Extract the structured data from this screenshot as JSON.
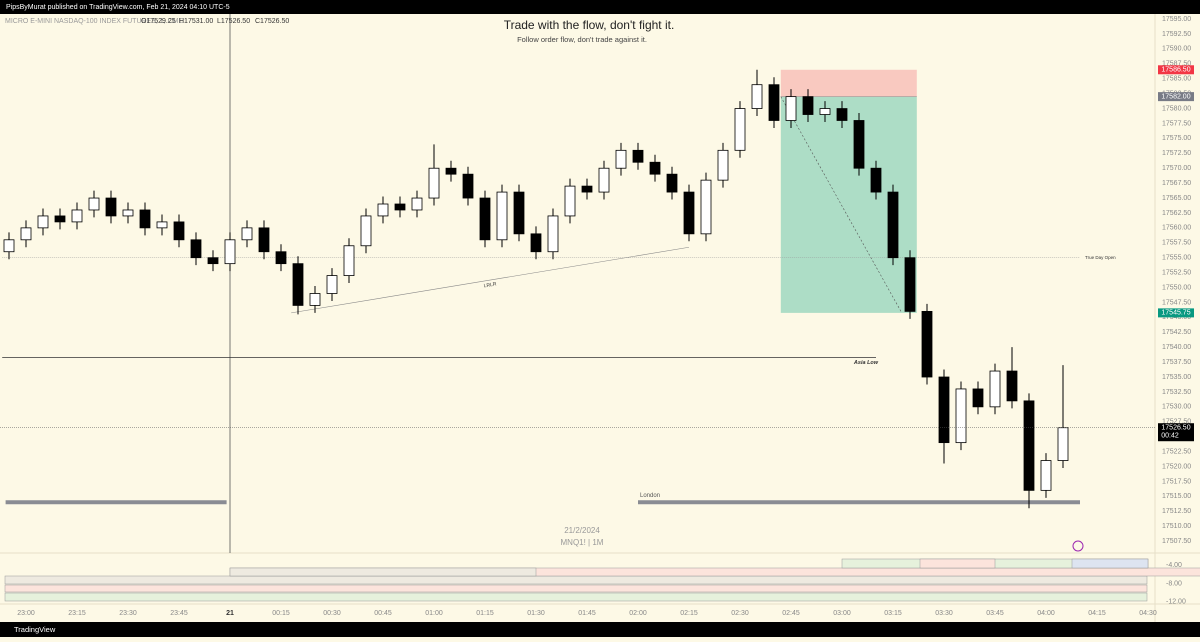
{
  "header": {
    "publisher": "PipsByMurat published on TradingView.com, Feb 21, 2024 04:10 UTC-5"
  },
  "chart_data": {
    "type": "candlestick",
    "title": "Trade with the flow, don't fight it.",
    "subtitle": "Follow order flow, don't trade against it.",
    "symbol": "MICRO E-MINI NASDAQ-100 INDEX FUTURES, 1, CME",
    "ohlc_legend": [
      "O17529.25",
      "H17531.00",
      "L17526.50",
      "C17526.50"
    ],
    "watermark": [
      "21/2/2024",
      "MNQ1! | 1M"
    ],
    "x": [
      "22:55",
      "23:00",
      "23:05",
      "23:10",
      "23:15",
      "23:20",
      "23:25",
      "23:30",
      "23:35",
      "23:40",
      "23:45",
      "23:50",
      "23:55",
      "00:00",
      "00:05",
      "00:10",
      "00:15",
      "00:20",
      "00:25",
      "00:30",
      "00:35",
      "00:40",
      "00:45",
      "00:50",
      "00:55",
      "01:00",
      "01:05",
      "01:10",
      "01:15",
      "01:20",
      "01:25",
      "01:30",
      "01:35",
      "01:40",
      "01:45",
      "01:50",
      "01:55",
      "02:00",
      "02:05",
      "02:10",
      "02:15",
      "02:20",
      "02:25",
      "02:30",
      "02:35",
      "02:40",
      "02:45",
      "02:50",
      "02:55",
      "03:00",
      "03:05",
      "03:10",
      "03:15",
      "03:20",
      "03:25",
      "03:30",
      "03:35",
      "03:40",
      "03:45",
      "03:50",
      "03:55",
      "04:00",
      "04:05"
    ],
    "open": [
      17556,
      17558,
      17560,
      17562,
      17561,
      17563,
      17565,
      17562,
      17563,
      17560,
      17561,
      17558,
      17555,
      17554,
      17558,
      17560,
      17556,
      17554,
      17547,
      17549,
      17552,
      17557,
      17562,
      17564,
      17563,
      17565,
      17570,
      17569,
      17565,
      17558,
      17566,
      17559,
      17556,
      17562,
      17567,
      17566,
      17570,
      17573,
      17571,
      17569,
      17566,
      17559,
      17568,
      17573,
      17580,
      17584,
      17578,
      17582,
      17579,
      17580,
      17578,
      17570,
      17566,
      17555,
      17546,
      17535,
      17524,
      17533,
      17530,
      17536,
      17531,
      17516,
      17521
    ],
    "high": [
      17559.25,
      17561.25,
      17563.25,
      17563.25,
      17564.25,
      17566.25,
      17566.25,
      17564.25,
      17564.25,
      17562.25,
      17562.25,
      17559.25,
      17556.25,
      17559.25,
      17561.25,
      17561.25,
      17557.25,
      17555.25,
      17550.25,
      17553.25,
      17558.25,
      17563.25,
      17565.25,
      17565.25,
      17566.25,
      17574,
      17571.25,
      17570.25,
      17566.25,
      17567.25,
      17567.25,
      17560.25,
      17563.25,
      17568.25,
      17568.25,
      17571.25,
      17574.25,
      17574.25,
      17572.25,
      17570.25,
      17567.25,
      17569.25,
      17574.25,
      17581.25,
      17586.5,
      17585.25,
      17583.25,
      17583.25,
      17581.25,
      17581.25,
      17579.25,
      17571.25,
      17567.25,
      17556.25,
      17547.25,
      17536.25,
      17534.25,
      17534.25,
      17537.25,
      17540,
      17532.25,
      17522.25,
      17537
    ],
    "low": [
      17554.75,
      17556.75,
      17558.75,
      17559.75,
      17559.75,
      17561.75,
      17560.75,
      17560.75,
      17558.75,
      17558.75,
      17556.75,
      17553.75,
      17552.75,
      17552.75,
      17556.75,
      17554.75,
      17552.75,
      17545.5,
      17545.75,
      17547.75,
      17550.75,
      17555.75,
      17560.75,
      17561.75,
      17561.75,
      17563.75,
      17567.75,
      17563.75,
      17556.75,
      17556.75,
      17557.75,
      17554.75,
      17554.75,
      17560.75,
      17564.75,
      17564.75,
      17568.75,
      17569.75,
      17567.75,
      17564.75,
      17557.75,
      17557.75,
      17566.75,
      17571.75,
      17578.75,
      17576.75,
      17576.75,
      17577.75,
      17577.75,
      17576.75,
      17568.75,
      17564.75,
      17553.75,
      17544.75,
      17533.75,
      17520.5,
      17522.75,
      17528.75,
      17528.75,
      17529.75,
      17513,
      17514.75,
      17519.75
    ],
    "close": [
      17558,
      17560,
      17562,
      17561,
      17563,
      17565,
      17562,
      17563,
      17560,
      17561,
      17558,
      17555,
      17554,
      17558,
      17560,
      17556,
      17554,
      17547,
      17549,
      17552,
      17557,
      17562,
      17564,
      17563,
      17565,
      17570,
      17569,
      17565,
      17558,
      17566,
      17559,
      17556,
      17562,
      17567,
      17566,
      17570,
      17573,
      17571,
      17569,
      17566,
      17559,
      17568,
      17573,
      17580,
      17584,
      17578,
      17582,
      17579,
      17580,
      17578,
      17570,
      17566,
      17555,
      17546,
      17535,
      17524,
      17533,
      17530,
      17536,
      17531,
      17516,
      17521,
      17526.5
    ],
    "up_color": "#ffffff",
    "down_color": "#000000",
    "ylim": [
      17505.5,
      17595.85
    ],
    "yticks": [
      {
        "value": 17595,
        "label": "17595.00"
      },
      {
        "value": 17592.5,
        "label": "17592.50"
      },
      {
        "value": 17590,
        "label": "17590.00"
      },
      {
        "value": 17587.5,
        "label": "17587.50"
      },
      {
        "value": 17585,
        "label": "17585.00"
      },
      {
        "value": 17582.5,
        "label": "17582.50"
      },
      {
        "value": 17580,
        "label": "17580.00"
      },
      {
        "value": 17577.5,
        "label": "17577.50"
      },
      {
        "value": 17575,
        "label": "17575.00"
      },
      {
        "value": 17572.5,
        "label": "17572.50"
      },
      {
        "value": 17570,
        "label": "17570.00"
      },
      {
        "value": 17567.5,
        "label": "17567.50"
      },
      {
        "value": 17565,
        "label": "17565.00"
      },
      {
        "value": 17562.5,
        "label": "17562.50"
      },
      {
        "value": 17560,
        "label": "17560.00"
      },
      {
        "value": 17557.5,
        "label": "17557.50"
      },
      {
        "value": 17555,
        "label": "17555.00"
      },
      {
        "value": 17552.5,
        "label": "17552.50"
      },
      {
        "value": 17550,
        "label": "17550.00"
      },
      {
        "value": 17547.5,
        "label": "17547.50"
      },
      {
        "value": 17545,
        "label": "17545.00"
      },
      {
        "value": 17542.5,
        "label": "17542.50"
      },
      {
        "value": 17540,
        "label": "17540.00"
      },
      {
        "value": 17537.5,
        "label": "17537.50"
      },
      {
        "value": 17535,
        "label": "17535.00"
      },
      {
        "value": 17532.5,
        "label": "17532.50"
      },
      {
        "value": 17530,
        "label": "17530.00"
      },
      {
        "value": 17527.5,
        "label": "17527.50"
      },
      {
        "value": 17525,
        "label": "17525.00"
      },
      {
        "value": 17522.5,
        "label": "17522.50"
      },
      {
        "value": 17520,
        "label": "17520.00"
      },
      {
        "value": 17517.5,
        "label": "17517.50"
      },
      {
        "value": 17515,
        "label": "17515.00"
      },
      {
        "value": 17512.5,
        "label": "17512.50"
      },
      {
        "value": 17510,
        "label": "17510.00"
      },
      {
        "value": 17507.5,
        "label": "17507.50"
      }
    ],
    "xticks": [
      "23:00",
      "23:15",
      "23:30",
      "23:45",
      "21",
      "00:15",
      "00:30",
      "00:45",
      "01:00",
      "01:15",
      "01:30",
      "01:45",
      "02:00",
      "02:15",
      "02:30",
      "02:45",
      "03:00",
      "03:15",
      "03:30",
      "03:45",
      "04:00",
      "04:15",
      "04:30"
    ],
    "price_tags": [
      {
        "value": 17586.5,
        "label": "17586.50",
        "color": "#f23645"
      },
      {
        "value": 17582,
        "label": "17582.00",
        "color": "#787b86"
      },
      {
        "value": 17545.75,
        "label": "17545.75",
        "color": "#089981"
      },
      {
        "value": 17526.5,
        "label": "17526.50",
        "color": "#000000",
        "countdown": "00:42"
      }
    ],
    "position": {
      "entry": 17582,
      "stop": 17586.5,
      "target": 17545.75,
      "start": "02:42",
      "end": "03:22",
      "stop_color": "#f9c9c0",
      "target_color": "#9fd8c0"
    },
    "levels": [
      {
        "name": "True Day Open",
        "value": 17555,
        "start": "22:53",
        "end": "04:10"
      },
      {
        "name": "Asia Low",
        "value": 17538.25,
        "start": "22:53",
        "end": "03:10"
      }
    ],
    "trendline": {
      "name": "LRLR",
      "start": [
        "00:18",
        17545.75
      ],
      "end": [
        "02:15",
        17556.75
      ]
    },
    "sessions": [
      {
        "value": 17514,
        "start": "22:54",
        "end": "23:59"
      },
      {
        "name": "London",
        "value": 17514,
        "start": "02:00",
        "end": "04:10"
      }
    ],
    "indicator": {
      "ylim": [
        -12.5,
        -1.5
      ],
      "yticks": [
        {
          "value": -4,
          "label": "-4.00"
        },
        {
          "value": -8,
          "label": "-8.00"
        },
        {
          "value": -12,
          "label": "-12.00"
        }
      ]
    }
  },
  "footer": {
    "brand": "TradingView"
  }
}
